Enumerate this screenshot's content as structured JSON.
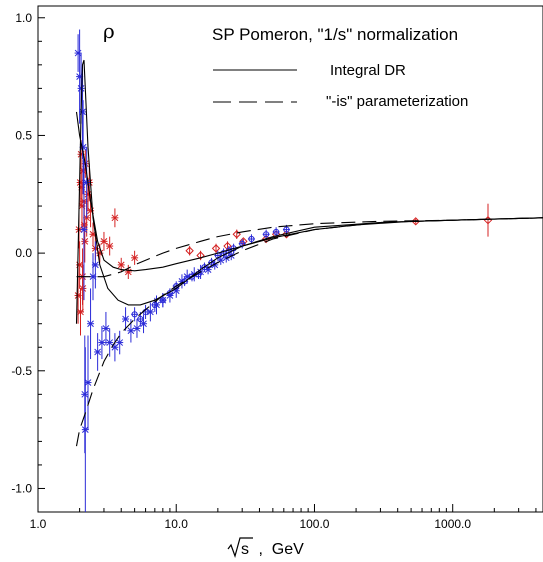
{
  "chart_data": {
    "type": "scatter",
    "title": "SP Pomeron, \"1/s\" normalization",
    "symbol": "ρ",
    "xlabel_radical": "s",
    "xlabel_rest": " ,  GeV",
    "xscale": "log",
    "xlim": [
      1.0,
      4500.0
    ],
    "ylim": [
      -1.1,
      1.05
    ],
    "x_ticks": [
      1.0,
      10.0,
      100.0,
      1000.0
    ],
    "x_tick_labels": [
      "1.0",
      "10.0",
      "100.0",
      "1000.0"
    ],
    "y_ticks": [
      -1.0,
      -0.5,
      0.0,
      0.5,
      1.0
    ],
    "y_tick_labels": [
      "-1.0",
      "-0.5",
      "0.0",
      "0.5",
      "1.0"
    ],
    "legend_position": "top-right",
    "legend": [
      {
        "label": "Integral DR",
        "style": "solid"
      },
      {
        "label": "\"-is\" parameterization",
        "style": "dashed"
      }
    ],
    "colors": {
      "pp": "#d42020",
      "pbar_p": "#2a2ad8",
      "curves": "#000000"
    },
    "series": [
      {
        "marker": "cross-red",
        "color": "#d42020",
        "x": [
          1.95,
          1.98,
          2.0,
          2.02,
          2.05,
          2.08,
          2.1,
          2.12,
          2.15,
          2.18,
          2.2,
          2.25,
          2.3,
          2.35,
          2.4,
          2.5,
          2.6,
          2.8,
          3.0,
          3.3,
          3.6,
          4.0,
          4.5,
          5.0,
          2.03,
          2.07,
          2.11,
          2.16
        ],
        "y": [
          -0.18,
          0.1,
          -0.05,
          0.3,
          0.42,
          0.2,
          -0.1,
          0.35,
          0.22,
          0.05,
          0.38,
          0.15,
          0.25,
          0.3,
          0.18,
          0.08,
          0.02,
          0.0,
          0.05,
          0.03,
          0.15,
          -0.05,
          -0.08,
          -0.02,
          -0.25,
          0.28,
          -0.15,
          0.12
        ],
        "yerr": [
          0.12,
          0.08,
          0.1,
          0.1,
          0.06,
          0.1,
          0.12,
          0.08,
          0.1,
          0.09,
          0.06,
          0.08,
          0.07,
          0.08,
          0.07,
          0.05,
          0.05,
          0.04,
          0.04,
          0.04,
          0.04,
          0.03,
          0.03,
          0.03,
          0.1,
          0.08,
          0.1,
          0.09
        ]
      },
      {
        "marker": "diamond-red",
        "color": "#d42020",
        "x": [
          12.5,
          15.0,
          19.4,
          23.5,
          27.4,
          30.6,
          44.7,
          52.8,
          62.7,
          540.0,
          1800.0
        ],
        "y": [
          0.01,
          -0.01,
          0.02,
          0.03,
          0.08,
          0.05,
          0.06,
          0.08,
          0.08,
          0.135,
          0.14
        ],
        "yerr": [
          0.02,
          0.02,
          0.02,
          0.02,
          0.02,
          0.01,
          0.01,
          0.01,
          0.01,
          0.01,
          0.07
        ]
      },
      {
        "marker": "cross-blue",
        "color": "#2a2ad8",
        "x": [
          1.95,
          2.0,
          2.05,
          2.1,
          2.15,
          2.2,
          2.3,
          2.4,
          2.5,
          2.6,
          2.7,
          2.9,
          3.1,
          3.3,
          3.6,
          3.9,
          4.3,
          4.7,
          5.2,
          5.8,
          6.5,
          7.2,
          8.0,
          9.0,
          10.0,
          11.0,
          12.0,
          13.5,
          15.0,
          17.0,
          19.0,
          21.0,
          23.0,
          25.0,
          2.12,
          2.18,
          2.25
        ],
        "y": [
          0.85,
          0.75,
          0.7,
          0.6,
          0.1,
          -0.75,
          -0.55,
          -0.3,
          -0.1,
          -0.05,
          -0.42,
          -0.38,
          -0.32,
          -0.38,
          -0.4,
          -0.38,
          -0.28,
          -0.33,
          -0.32,
          -0.3,
          -0.25,
          -0.22,
          -0.2,
          -0.18,
          -0.16,
          -0.12,
          -0.1,
          -0.09,
          -0.08,
          -0.07,
          -0.05,
          -0.03,
          -0.02,
          -0.01,
          0.45,
          -0.6,
          0.3
        ],
        "yerr": [
          0.08,
          0.2,
          0.15,
          0.2,
          0.3,
          0.35,
          0.2,
          0.15,
          0.1,
          0.1,
          0.08,
          0.07,
          0.07,
          0.06,
          0.06,
          0.05,
          0.05,
          0.05,
          0.04,
          0.04,
          0.04,
          0.04,
          0.03,
          0.03,
          0.03,
          0.03,
          0.03,
          0.03,
          0.03,
          0.02,
          0.02,
          0.02,
          0.02,
          0.02,
          0.2,
          0.25,
          0.15
        ]
      },
      {
        "marker": "circle-blue",
        "color": "#2a2ad8",
        "x": [
          5.0,
          5.5,
          6.0,
          7.0,
          8.0,
          9.0,
          10.0,
          11.5,
          13.0,
          14.5,
          16.0,
          18.0,
          20.0,
          22.0,
          24.0,
          26.0,
          30.0,
          35.0,
          44.7,
          52.8,
          62.7
        ],
        "y": [
          -0.26,
          -0.28,
          -0.25,
          -0.22,
          -0.2,
          -0.17,
          -0.14,
          -0.12,
          -0.1,
          -0.09,
          -0.06,
          -0.04,
          -0.01,
          0.0,
          0.01,
          0.02,
          0.04,
          0.06,
          0.08,
          0.09,
          0.1
        ],
        "yerr": [
          0.03,
          0.03,
          0.03,
          0.03,
          0.03,
          0.02,
          0.02,
          0.02,
          0.02,
          0.02,
          0.02,
          0.02,
          0.02,
          0.02,
          0.02,
          0.02,
          0.02,
          0.02,
          0.02,
          0.02,
          0.02
        ]
      },
      {
        "marker": "curve-solid",
        "color": "#000000",
        "x": [
          1.9,
          2.0,
          2.1,
          2.2,
          2.4,
          2.7,
          3.0,
          3.5,
          4.0,
          5.0,
          6.0,
          8.0,
          10.0,
          15.0,
          20.0,
          30.0,
          50.0,
          100.0,
          200.0,
          500.0,
          1000.0,
          2000.0,
          4500.0
        ],
        "y": [
          0.6,
          0.5,
          0.44,
          0.38,
          0.22,
          0.05,
          -0.03,
          -0.06,
          -0.07,
          -0.075,
          -0.07,
          -0.06,
          -0.045,
          -0.02,
          0.0,
          0.03,
          0.065,
          0.1,
          0.12,
          0.135,
          0.14,
          0.145,
          0.15
        ]
      },
      {
        "marker": "curve-solid",
        "color": "#000000",
        "x": [
          1.9,
          2.0,
          2.05,
          2.1,
          2.15,
          2.2,
          2.3,
          2.5,
          2.8,
          3.2,
          3.8,
          4.5,
          5.5,
          7.0,
          10.0,
          15.0,
          20.0,
          30.0,
          50.0,
          100.0,
          300.0,
          1000.0,
          4500.0
        ],
        "y": [
          -0.3,
          0.3,
          0.6,
          0.8,
          0.82,
          0.7,
          0.45,
          0.15,
          -0.05,
          -0.15,
          -0.2,
          -0.22,
          -0.22,
          -0.2,
          -0.15,
          -0.07,
          -0.02,
          0.03,
          0.07,
          0.11,
          0.13,
          0.14,
          0.15
        ]
      },
      {
        "marker": "curve-dashed",
        "color": "#000000",
        "x": [
          1.9,
          2.0,
          2.2,
          2.5,
          3.0,
          3.5,
          4.0,
          5.0,
          6.0,
          8.0,
          10.0,
          15.0,
          20.0,
          30.0,
          50.0,
          100.0,
          300.0,
          1000.0,
          4500.0
        ],
        "y": [
          -0.82,
          -0.75,
          -0.68,
          -0.58,
          -0.46,
          -0.39,
          -0.34,
          -0.28,
          -0.24,
          -0.18,
          -0.14,
          -0.08,
          -0.04,
          0.01,
          0.06,
          0.1,
          0.13,
          0.14,
          0.15
        ]
      },
      {
        "marker": "curve-dashed",
        "color": "#000000",
        "x": [
          1.9,
          2.0,
          2.2,
          2.5,
          3.0,
          4.0,
          5.0,
          6.0,
          8.0,
          10.0,
          15.0,
          20.0,
          30.0,
          50.0,
          100.0,
          300.0,
          1000.0,
          4500.0
        ],
        "y": [
          -0.1,
          -0.1,
          -0.1,
          -0.1,
          -0.1,
          -0.08,
          -0.05,
          -0.03,
          0.0,
          0.02,
          0.05,
          0.07,
          0.09,
          0.11,
          0.125,
          0.135,
          0.14,
          0.15
        ]
      }
    ]
  }
}
